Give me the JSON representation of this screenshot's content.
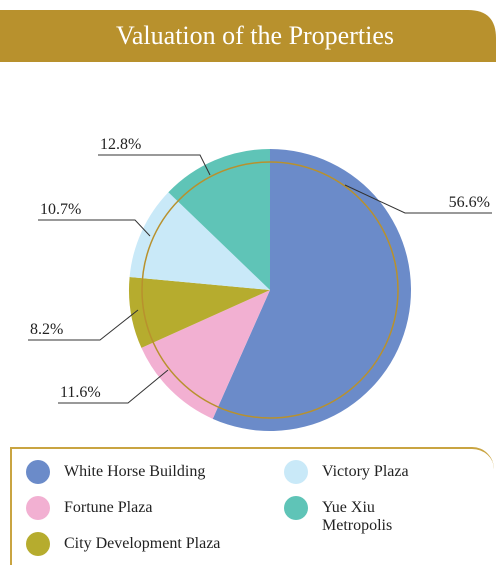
{
  "chart_data": {
    "type": "pie",
    "title": "Valuation of the Properties",
    "categories": [
      "White Horse Building",
      "Fortune Plaza",
      "City Development Plaza",
      "Victory Plaza",
      "Yue Xiu Metropolis"
    ],
    "values": [
      56.6,
      11.6,
      8.2,
      10.7,
      12.8
    ],
    "value_labels": [
      "56.6%",
      "11.6%",
      "8.2%",
      "10.7%",
      "12.8%"
    ],
    "colors": [
      "#6b8bc9",
      "#f2b0d2",
      "#b6ac2e",
      "#c9e9f8",
      "#5fc4b7"
    ]
  }
}
